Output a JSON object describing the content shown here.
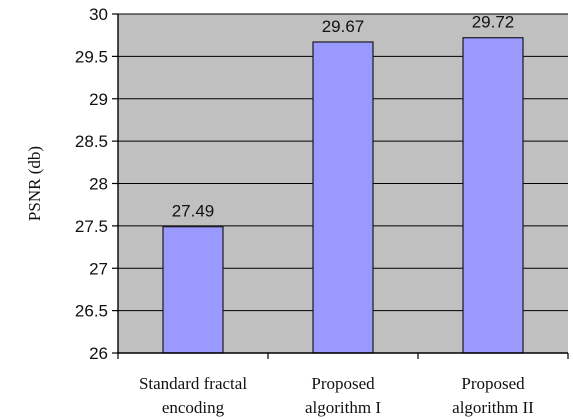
{
  "chart_data": {
    "type": "bar",
    "categories": [
      [
        "Standard fractal",
        "encoding"
      ],
      [
        "Proposed",
        "algorithm I"
      ],
      [
        "Proposed",
        "algorithm II"
      ]
    ],
    "values": [
      27.49,
      29.67,
      29.72
    ],
    "data_labels": [
      "27.49",
      "29.67",
      "29.72"
    ],
    "ylabel": "PSNR (db)",
    "xlabel": "",
    "title": "",
    "ylim": [
      26,
      30
    ],
    "yticks": [
      "26",
      "26.5",
      "27",
      "27.5",
      "28",
      "28.5",
      "29",
      "29.5",
      "30"
    ],
    "grid": true,
    "legend": "none",
    "colors": {
      "bar_fill": "#9999ff",
      "bar_stroke": "#1a1a1a",
      "plot_background": "#c0c0c0",
      "gridline": "#000000"
    }
  }
}
